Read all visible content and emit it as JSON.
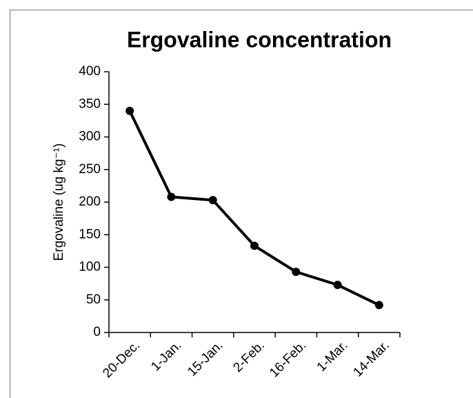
{
  "chart_data": {
    "type": "line",
    "title": "Ergovaline concentration",
    "ylabel": "Ergovaline (ug kg⁻¹)",
    "categories": [
      "20-Dec.",
      "1-Jan.",
      "15-Jan.",
      "2-Feb.",
      "16-Feb.",
      "1-Mar.",
      "14-Mar."
    ],
    "series": [
      {
        "name": "Ergovaline",
        "color": "#000000",
        "values": [
          340,
          208,
          203,
          133,
          93,
          73,
          42
        ]
      }
    ],
    "ylim": [
      0,
      400
    ],
    "yticks": [
      0,
      50,
      100,
      150,
      200,
      250,
      300,
      350,
      400
    ],
    "grid": false
  }
}
